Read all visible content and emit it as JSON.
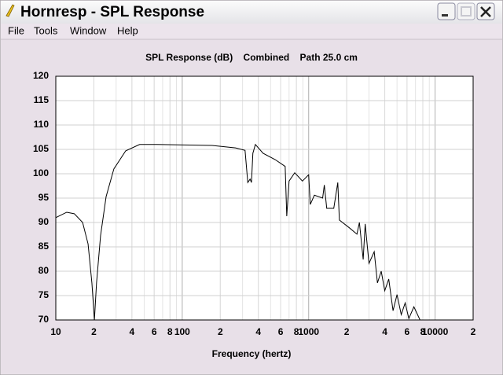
{
  "window": {
    "title": "Hornresp - SPL Response",
    "menu": [
      "File",
      "Tools",
      "Window",
      "Help"
    ]
  },
  "chart_data": {
    "type": "line",
    "title": "SPL Response (dB)    Combined    Path 25.0 cm",
    "x_label": "Frequency (hertz)",
    "x": [
      10,
      12.2,
      14,
      16.3,
      18,
      19.3,
      20.2,
      21,
      22.6,
      25,
      28.8,
      35.7,
      46,
      63,
      172,
      264,
      314,
      330,
      344,
      353,
      362,
      379,
      436,
      543,
      652,
      671,
      700,
      776,
      893,
      1000,
      1030,
      1110,
      1290,
      1330,
      1390,
      1580,
      1700,
      1750,
      2100,
      2410,
      2520,
      2700,
      2800,
      3000,
      3300,
      3500,
      3750,
      4000,
      4300,
      4650,
      5000,
      5400,
      5800,
      6200,
      6800,
      7600
    ],
    "values": [
      91,
      92.1,
      91.8,
      90,
      85.6,
      77.6,
      70,
      77.6,
      87.3,
      95.3,
      101,
      104.7,
      106,
      106,
      105.8,
      105.3,
      104.8,
      98.2,
      98.9,
      98.2,
      104.2,
      106,
      104.2,
      102.9,
      101.5,
      91.3,
      98.5,
      100.2,
      98.5,
      99.8,
      93.7,
      95.6,
      95,
      97.7,
      92.9,
      92.9,
      98.2,
      90.5,
      88.9,
      87.6,
      90,
      82.4,
      89.7,
      81.6,
      84,
      77.6,
      80,
      76,
      78.4,
      71.9,
      75.2,
      71.1,
      73.5,
      70.3,
      72.7,
      70
    ],
    "color": "#000000",
    "xscale": "log",
    "xlim": [
      10,
      20000
    ],
    "xticks": [
      10,
      {
        "value": 20,
        "label": "2"
      },
      {
        "value": 40,
        "label": "4"
      },
      {
        "value": 60,
        "label": "6"
      },
      {
        "value": 80,
        "label": "8"
      },
      100,
      {
        "value": 200,
        "label": "2"
      },
      {
        "value": 400,
        "label": "4"
      },
      {
        "value": 600,
        "label": "6"
      },
      {
        "value": 800,
        "label": "8"
      },
      1000,
      {
        "value": 2000,
        "label": "2"
      },
      {
        "value": 4000,
        "label": "4"
      },
      {
        "value": 6000,
        "label": "6"
      },
      {
        "value": 8000,
        "label": "8"
      },
      10000,
      {
        "value": 20000,
        "label": "2"
      }
    ],
    "ylim": [
      70,
      120
    ],
    "yticks": [
      70,
      75,
      80,
      85,
      90,
      95,
      100,
      105,
      110,
      115,
      120
    ],
    "grid": true,
    "minor_grid": true
  }
}
